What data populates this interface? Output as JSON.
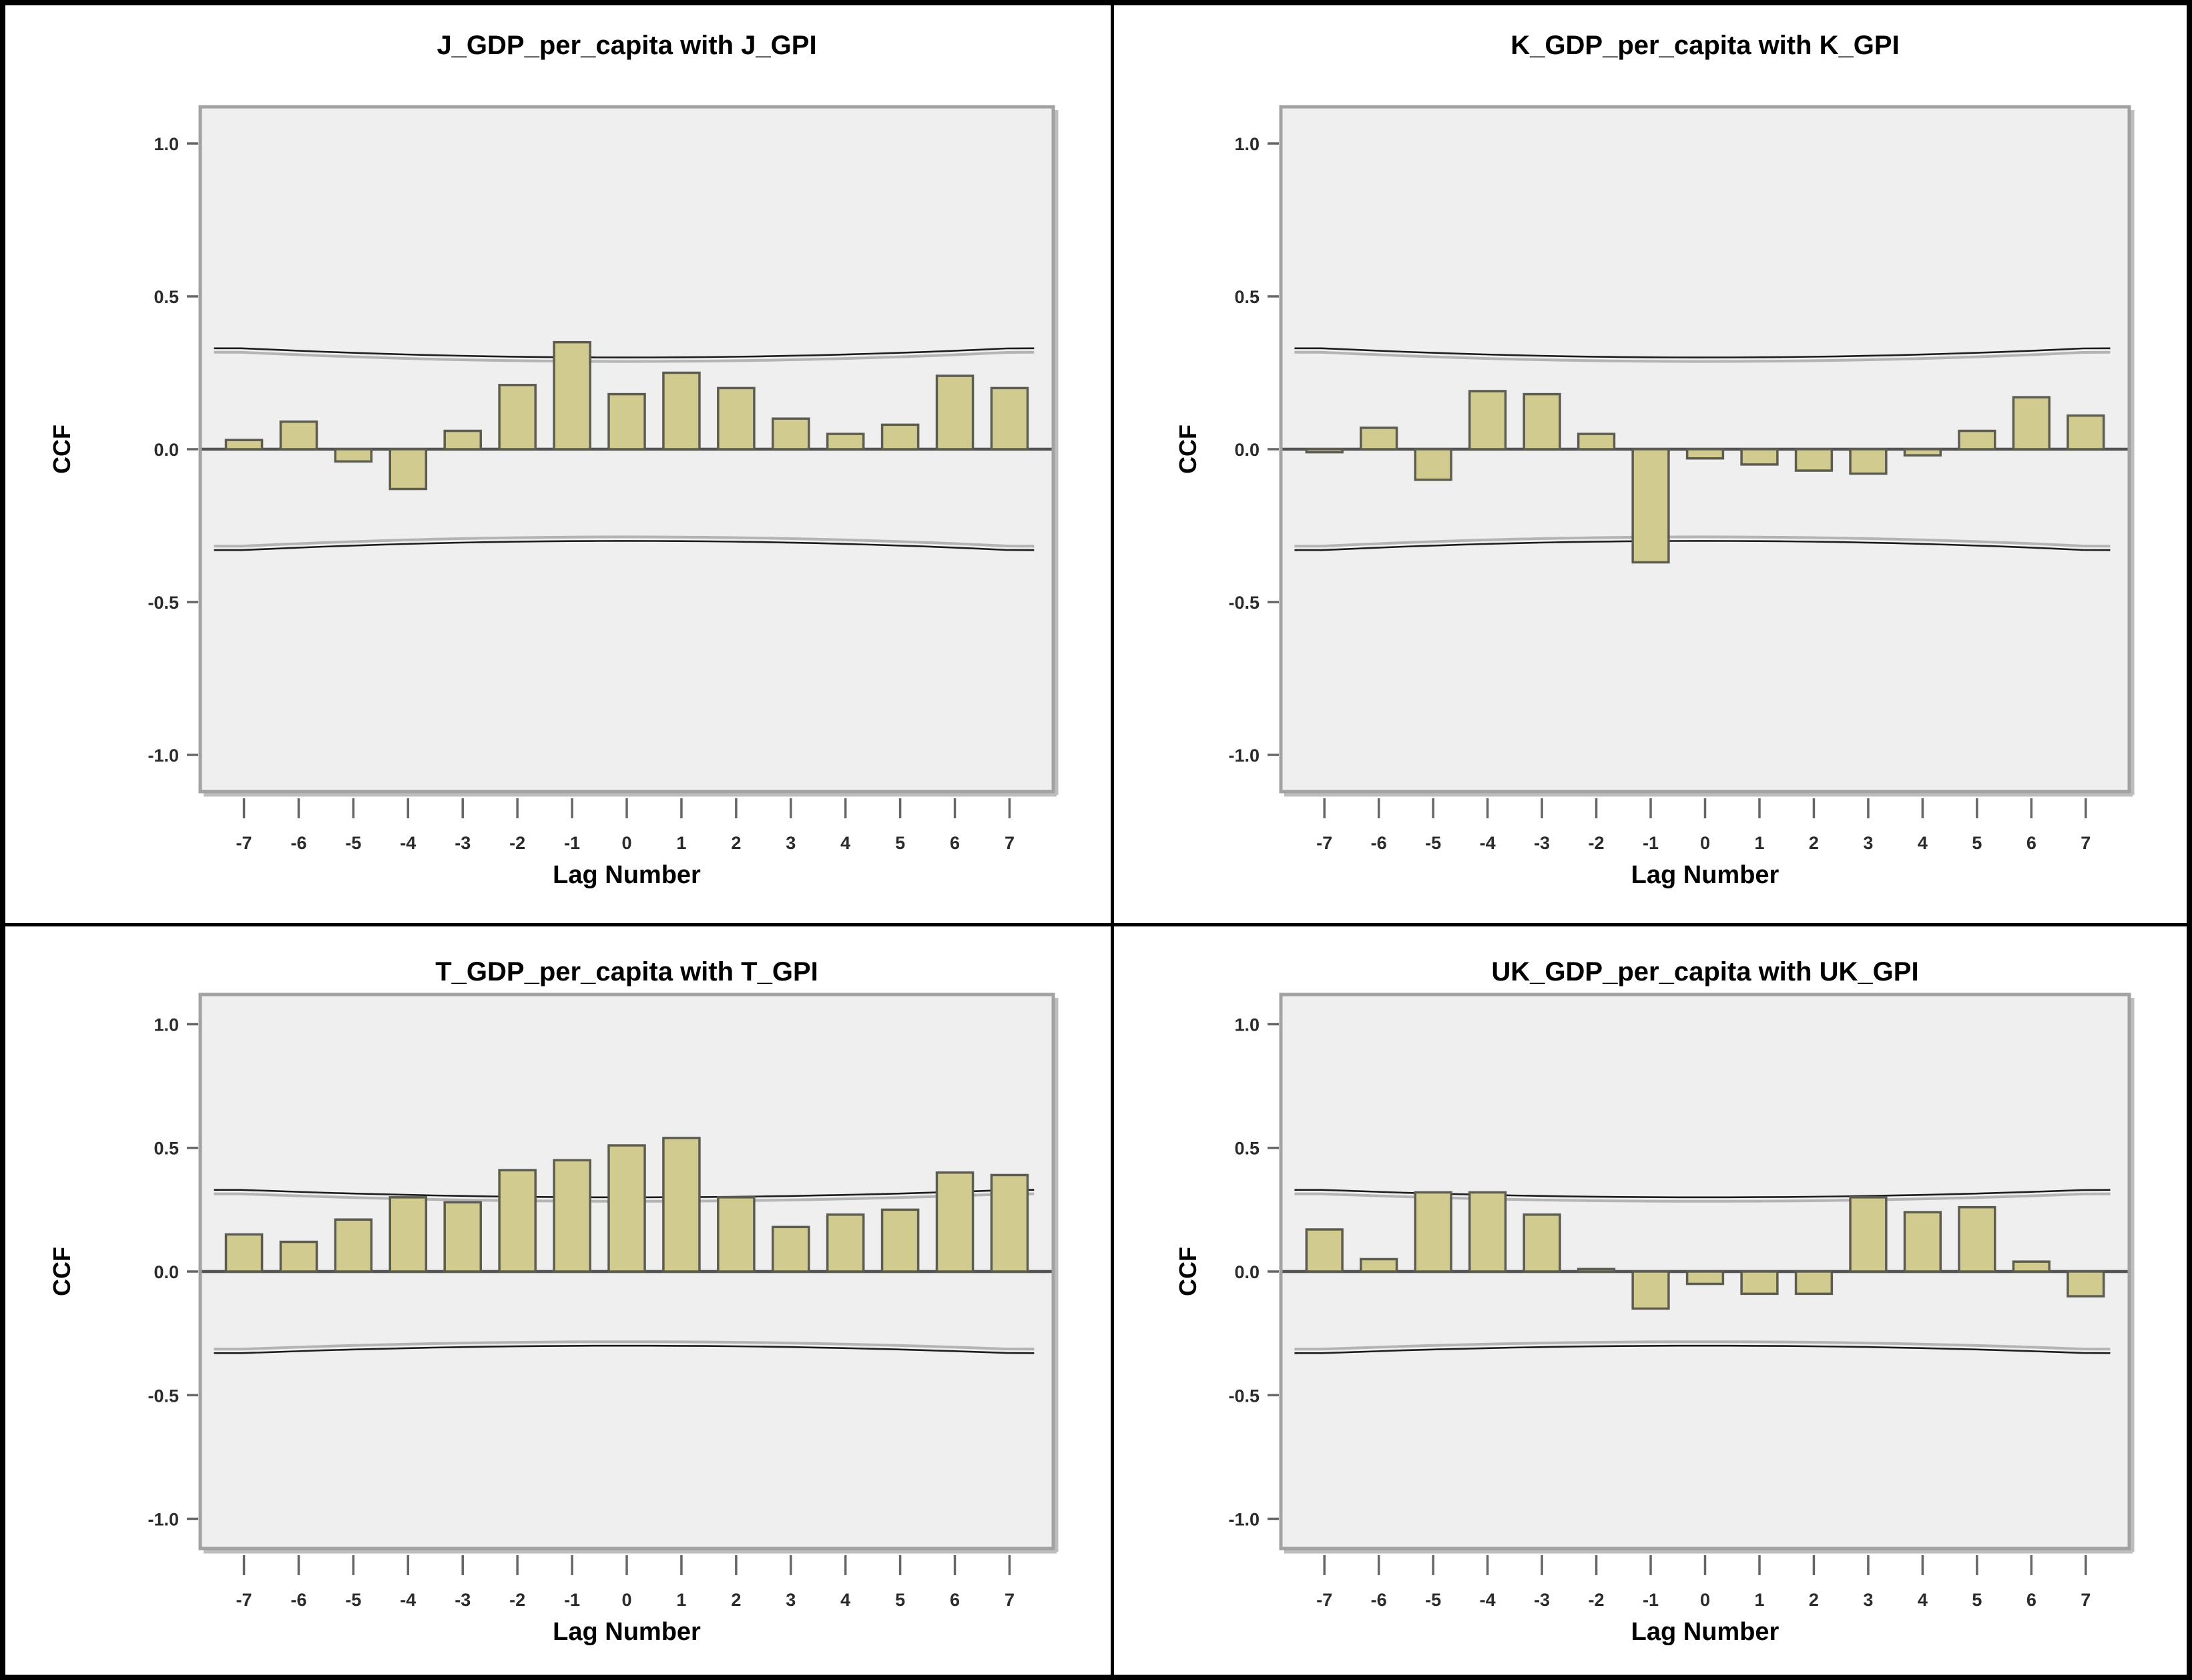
{
  "colors": {
    "page_bg": "#ffffff",
    "outer_border": "#000000",
    "divider": "#000000",
    "plot_bg": "#efefef",
    "plot_frame": "#a2a2a2",
    "plot_shadow": "#bdbdbd",
    "zero_line": "#525252",
    "ci_line": "#1c1c1c",
    "tick_mark": "#666666",
    "tick_text": "#2b2b2b",
    "bar_fill": "#d2cb90",
    "bar_stroke": "#5d5c50",
    "title_text": "#000000"
  },
  "chart_data": [
    {
      "type": "bar",
      "title": "J_GDP_per_capita with J_GPI",
      "xlabel": "Lag Number",
      "ylabel": "CCF",
      "categories": [
        "-7",
        "-6",
        "-5",
        "-4",
        "-3",
        "-2",
        "-1",
        "0",
        "1",
        "2",
        "3",
        "4",
        "5",
        "6",
        "7"
      ],
      "values": [
        0.03,
        0.09,
        -0.04,
        -0.13,
        0.06,
        0.21,
        0.35,
        0.18,
        0.25,
        0.2,
        0.1,
        0.05,
        0.08,
        0.24,
        0.2
      ],
      "ylim": [
        -1.12,
        1.12
      ],
      "ytick_values": [
        1.0,
        0.5,
        0.0,
        -0.5,
        -1.0
      ],
      "ytick_labels": [
        "1.0",
        "0.5",
        "0.0",
        "-0.5",
        "-1.0"
      ],
      "grid": false,
      "legend": null,
      "confidence_bounds": {
        "upper_edge": 0.33,
        "upper_center": 0.3,
        "lower_edge": -0.33,
        "lower_center": -0.3
      }
    },
    {
      "type": "bar",
      "title": "K_GDP_per_capita with K_GPI",
      "xlabel": "Lag Number",
      "ylabel": "CCF",
      "categories": [
        "-7",
        "-6",
        "-5",
        "-4",
        "-3",
        "-2",
        "-1",
        "0",
        "1",
        "2",
        "3",
        "4",
        "5",
        "6",
        "7"
      ],
      "values": [
        -0.01,
        0.07,
        -0.1,
        0.19,
        0.18,
        0.05,
        -0.37,
        -0.03,
        -0.05,
        -0.07,
        -0.08,
        -0.02,
        0.06,
        0.17,
        0.11
      ],
      "ylim": [
        -1.12,
        1.12
      ],
      "ytick_values": [
        1.0,
        0.5,
        0.0,
        -0.5,
        -1.0
      ],
      "ytick_labels": [
        "1.0",
        "0.5",
        "0.0",
        "-0.5",
        "-1.0"
      ],
      "grid": false,
      "legend": null,
      "confidence_bounds": {
        "upper_edge": 0.33,
        "upper_center": 0.3,
        "lower_edge": -0.33,
        "lower_center": -0.3
      }
    },
    {
      "type": "bar",
      "title": "T_GDP_per_capita with T_GPI",
      "xlabel": "Lag Number",
      "ylabel": "CCF",
      "categories": [
        "-7",
        "-6",
        "-5",
        "-4",
        "-3",
        "-2",
        "-1",
        "0",
        "1",
        "2",
        "3",
        "4",
        "5",
        "6",
        "7"
      ],
      "values": [
        0.15,
        0.12,
        0.21,
        0.3,
        0.28,
        0.41,
        0.45,
        0.51,
        0.54,
        0.3,
        0.18,
        0.23,
        0.25,
        0.4,
        0.39
      ],
      "ylim": [
        -1.12,
        1.12
      ],
      "ytick_values": [
        1.0,
        0.5,
        0.0,
        -0.5,
        -1.0
      ],
      "ytick_labels": [
        "1.0",
        "0.5",
        "0.0",
        "-0.5",
        "-1.0"
      ],
      "grid": false,
      "legend": null,
      "confidence_bounds": {
        "upper_edge": 0.33,
        "upper_center": 0.3,
        "lower_edge": -0.33,
        "lower_center": -0.3
      }
    },
    {
      "type": "bar",
      "title": "UK_GDP_per_capita with UK_GPI",
      "xlabel": "Lag Number",
      "ylabel": "CCF",
      "categories": [
        "-7",
        "-6",
        "-5",
        "-4",
        "-3",
        "-2",
        "-1",
        "0",
        "1",
        "2",
        "3",
        "4",
        "5",
        "6",
        "7"
      ],
      "values": [
        0.17,
        0.05,
        0.32,
        0.32,
        0.23,
        0.01,
        -0.15,
        -0.05,
        -0.09,
        -0.09,
        0.3,
        0.24,
        0.26,
        0.04,
        -0.1
      ],
      "ylim": [
        -1.12,
        1.12
      ],
      "ytick_values": [
        1.0,
        0.5,
        0.0,
        -0.5,
        -1.0
      ],
      "ytick_labels": [
        "1.0",
        "0.5",
        "0.0",
        "-0.5",
        "-1.0"
      ],
      "grid": false,
      "legend": null,
      "confidence_bounds": {
        "upper_edge": 0.33,
        "upper_center": 0.3,
        "lower_edge": -0.33,
        "lower_center": -0.3
      }
    }
  ]
}
